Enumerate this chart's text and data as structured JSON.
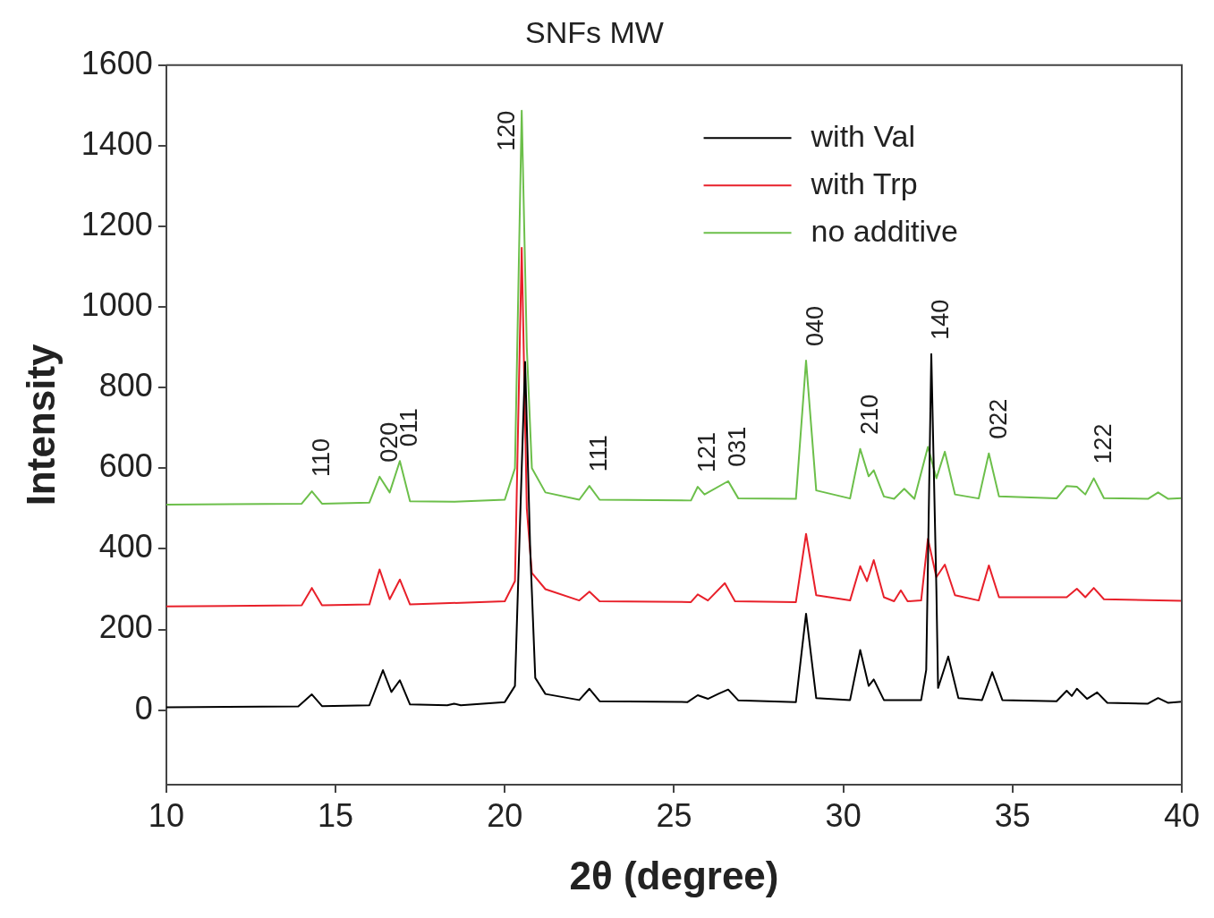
{
  "chart_data": {
    "type": "line",
    "title": "SNFs MW",
    "xlabel": "2θ (degree)",
    "ylabel": "Intensity",
    "xlim": [
      10,
      40
    ],
    "xticks": [
      10,
      15,
      20,
      25,
      30,
      35,
      40
    ],
    "ylim": [
      -185,
      1600
    ],
    "yticks": [
      0,
      200,
      400,
      600,
      800,
      1000,
      1200,
      1400,
      1600
    ],
    "grid": false,
    "legend": "top right",
    "marker": "none",
    "line_style": "solid",
    "series": [
      {
        "name": "with Val",
        "color": "#000000",
        "x": [
          10,
          13.9,
          14.3,
          14.6,
          16.0,
          16.4,
          16.65,
          16.9,
          17.2,
          18.3,
          18.5,
          18.7,
          20.0,
          20.3,
          20.5,
          20.6,
          20.75,
          20.9,
          21.2,
          22.2,
          22.5,
          22.8,
          25.4,
          25.7,
          26.0,
          26.3,
          26.6,
          26.9,
          28.6,
          28.9,
          29.2,
          30.2,
          30.5,
          30.75,
          30.9,
          31.2,
          32.3,
          32.45,
          32.6,
          32.75,
          32.8,
          33.1,
          33.4,
          34.1,
          34.4,
          34.7,
          36.3,
          36.6,
          36.75,
          36.9,
          37.2,
          37.5,
          37.8,
          39.0,
          39.3,
          39.6,
          40
        ],
        "values": [
          7,
          9,
          39,
          10,
          12,
          99,
          45,
          74,
          14,
          12,
          16,
          12,
          20,
          60,
          600,
          864,
          400,
          80,
          40,
          25,
          53,
          22,
          20,
          37,
          28,
          40,
          51,
          24,
          20,
          239,
          30,
          25,
          149,
          60,
          76,
          25,
          25,
          100,
          883,
          300,
          55,
          133,
          30,
          25,
          94,
          25,
          22,
          48,
          35,
          53,
          28,
          44,
          18,
          16,
          30,
          18,
          21
        ]
      },
      {
        "name": "with Trp",
        "color": "#e8202a",
        "x": [
          10,
          14.0,
          14.3,
          14.6,
          16.0,
          16.3,
          16.6,
          16.9,
          17.2,
          20.0,
          20.3,
          20.5,
          20.65,
          20.8,
          21.2,
          22.2,
          22.5,
          22.8,
          25.5,
          25.7,
          26.0,
          26.5,
          26.8,
          28.6,
          28.9,
          29.2,
          30.2,
          30.5,
          30.7,
          30.9,
          31.2,
          31.5,
          31.7,
          31.9,
          32.3,
          32.5,
          32.75,
          33.0,
          33.3,
          34.0,
          34.3,
          34.6,
          36.6,
          36.9,
          37.15,
          37.4,
          37.7,
          40
        ],
        "values": [
          257,
          260,
          303,
          260,
          262,
          349,
          275,
          324,
          262,
          270,
          320,
          1147,
          500,
          340,
          300,
          272,
          294,
          270,
          268,
          287,
          272,
          315,
          270,
          268,
          437,
          285,
          272,
          357,
          320,
          372,
          280,
          270,
          297,
          270,
          272,
          425,
          330,
          361,
          285,
          272,
          359,
          280,
          280,
          301,
          280,
          303,
          275,
          271
        ]
      },
      {
        "name": "no additive",
        "color": "#6cbf4a",
        "x": [
          10,
          14.0,
          14.3,
          14.6,
          16.0,
          16.3,
          16.6,
          16.9,
          17.2,
          18.5,
          20.0,
          20.3,
          20.5,
          20.65,
          20.8,
          21.2,
          22.2,
          22.5,
          22.8,
          25.5,
          25.7,
          25.9,
          26.6,
          26.9,
          28.6,
          28.9,
          29.2,
          30.2,
          30.5,
          30.75,
          30.9,
          31.2,
          31.5,
          31.8,
          32.1,
          32.5,
          32.75,
          33.0,
          33.3,
          34.0,
          34.3,
          34.6,
          36.3,
          36.6,
          36.9,
          37.15,
          37.4,
          37.7,
          39.0,
          39.3,
          39.6,
          40
        ],
        "values": [
          510,
          512,
          543,
          512,
          515,
          579,
          540,
          618,
          518,
          517,
          522,
          600,
          1487,
          900,
          600,
          540,
          522,
          556,
          522,
          520,
          554,
          535,
          568,
          525,
          524,
          867,
          545,
          525,
          648,
          580,
          595,
          530,
          524,
          549,
          524,
          653,
          575,
          641,
          535,
          525,
          637,
          530,
          525,
          556,
          554,
          535,
          575,
          526,
          524,
          540,
          524,
          526
        ]
      }
    ],
    "annotations": [
      {
        "text": "110",
        "x": 14.3,
        "y": 543
      },
      {
        "text": "020",
        "x": 16.3,
        "y": 579
      },
      {
        "text": "011",
        "x": 16.9,
        "y": 618
      },
      {
        "text": "120",
        "x": 20.5,
        "y": 1487
      },
      {
        "text": "111",
        "x": 22.5,
        "y": 556
      },
      {
        "text": "121",
        "x": 25.7,
        "y": 554
      },
      {
        "text": "031",
        "x": 26.6,
        "y": 568
      },
      {
        "text": "040",
        "x": 28.9,
        "y": 867
      },
      {
        "text": "210",
        "x": 30.5,
        "y": 648
      },
      {
        "text": "140",
        "x": 32.6,
        "y": 883
      },
      {
        "text": "022",
        "x": 34.3,
        "y": 637
      },
      {
        "text": "122",
        "x": 37.4,
        "y": 575
      }
    ]
  }
}
